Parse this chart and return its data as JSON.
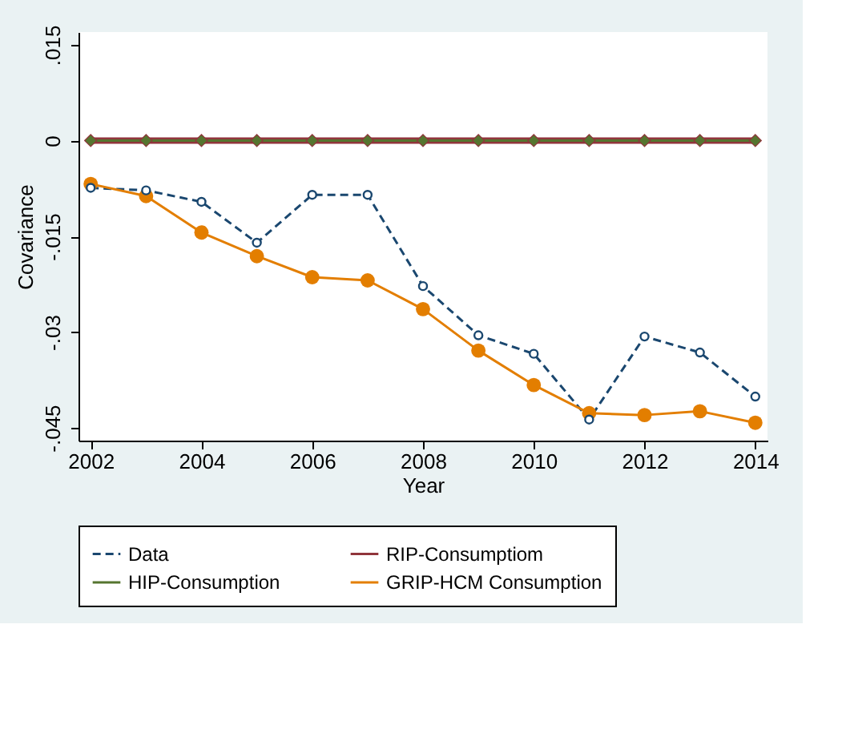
{
  "chart_data": {
    "type": "line",
    "xlabel": "Year",
    "ylabel": "Covariance",
    "x": [
      2002,
      2003,
      2004,
      2005,
      2006,
      2007,
      2008,
      2009,
      2010,
      2011,
      2012,
      2013,
      2014
    ],
    "series": [
      {
        "name": "Data",
        "color": "#1a476f",
        "marker": "circle_open",
        "line_style": "dashed",
        "values": [
          -0.0074,
          -0.0078,
          -0.0096,
          -0.016,
          -0.0085,
          -0.0085,
          -0.0228,
          -0.0305,
          -0.0334,
          -0.0437,
          -0.0307,
          -0.0332,
          -0.0401
        ]
      },
      {
        "name": "RIP-Consumptiom",
        "color": "#90353b",
        "marker": "diamond_open",
        "line_style": "solid",
        "values": [
          0,
          0,
          0,
          0,
          0,
          0,
          0,
          0,
          0,
          0,
          0,
          0,
          0
        ]
      },
      {
        "name": "HIP-Consumption",
        "color": "#55752f",
        "marker": "diamond",
        "line_style": "solid",
        "values": [
          0,
          0,
          0,
          0,
          0,
          0,
          0,
          0,
          0,
          0,
          0,
          0,
          0
        ]
      },
      {
        "name": "GRIP-HCM Consumption",
        "color": "#e37e00",
        "marker": "circle",
        "line_style": "solid",
        "values": [
          -0.0068,
          -0.0087,
          -0.0144,
          -0.0181,
          -0.0214,
          -0.0219,
          -0.0264,
          -0.0329,
          -0.0383,
          -0.0427,
          -0.043,
          -0.0424,
          -0.0442
        ]
      }
    ],
    "xlim": [
      2001.78,
      2014.22
    ],
    "xticks": [
      2002,
      2004,
      2006,
      2008,
      2010,
      2012,
      2014
    ],
    "ylim": [
      -0.047,
      0.017
    ],
    "yticks": [
      {
        "value": 0.015,
        "label": ".015"
      },
      {
        "value": 0,
        "label": "0"
      },
      {
        "value": -0.015,
        "label": "-.015"
      },
      {
        "value": -0.03,
        "label": "-.03"
      },
      {
        "value": -0.045,
        "label": "-.045"
      }
    ],
    "grid": false,
    "legend": "bottom"
  }
}
